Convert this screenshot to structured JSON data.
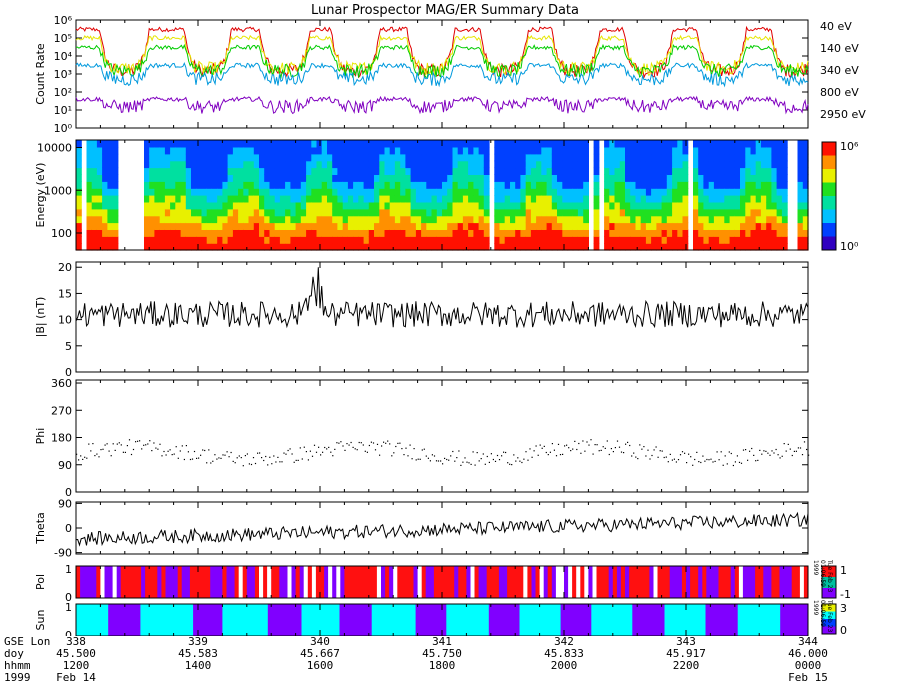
{
  "chart_data": {
    "title": "Lunar Prospector MAG/ER Summary Data",
    "xrange_doy": [
      45.5,
      46.0
    ],
    "panels": [
      {
        "id": "count_rate",
        "type": "line",
        "ylabel": "Count Rate",
        "yscale": "log",
        "ylim": [
          1,
          1000000
        ],
        "yticks": [
          "10⁰",
          "10¹",
          "10²",
          "10³",
          "10⁴",
          "10⁵",
          "10⁶"
        ],
        "series": [
          {
            "name": "40 eV",
            "color": "#e00000",
            "base": 300000,
            "wake_value": 1500
          },
          {
            "name": "140 eV",
            "color": "#e6e600",
            "base": 100000,
            "wake_value": 2000
          },
          {
            "name": "340 eV",
            "color": "#00cc00",
            "base": 30000,
            "wake_value": 1500
          },
          {
            "name": "800 eV",
            "color": "#0099dd",
            "base": 3000,
            "wake_value": 500
          },
          {
            "name": "2950 eV",
            "color": "#8000c0",
            "base": 40,
            "wake_value": 15
          }
        ]
      },
      {
        "id": "energy",
        "type": "heatmap",
        "ylabel": "Energy (eV)",
        "yscale": "log",
        "ylim": [
          40,
          15000
        ],
        "yticks": [
          "100",
          "1000",
          "10000"
        ],
        "colorbar": {
          "min_label": "10⁰",
          "max_label": "10⁶"
        }
      },
      {
        "id": "bmag",
        "type": "line",
        "ylabel": "|B| (nT)",
        "ylim": [
          0,
          21
        ],
        "yticks": [
          "0",
          "5",
          "10",
          "15",
          "20"
        ],
        "mean": 11
      },
      {
        "id": "phi",
        "type": "scatter",
        "ylabel": "Phi",
        "ylim": [
          0,
          370
        ],
        "yticks": [
          "0",
          "90",
          "180",
          "270",
          "360"
        ],
        "mean": 130
      },
      {
        "id": "theta",
        "type": "line",
        "ylabel": "Theta",
        "ylim": [
          -95,
          95
        ],
        "yticks": [
          "-90",
          "0",
          "90"
        ],
        "mean": 10
      },
      {
        "id": "pol",
        "type": "heatmap",
        "ylabel": "Pol",
        "yticks": [
          "0",
          "1"
        ],
        "colorbar": {
          "min_label": "-1",
          "max_label": "1"
        },
        "colors": {
          "positive": "#ff1010",
          "negative": "#8000ff"
        }
      },
      {
        "id": "sun",
        "type": "heatmap",
        "ylabel": "Sun",
        "yticks": [
          "0",
          "1"
        ],
        "colorbar": {
          "min_label": "0",
          "max_label": "3"
        },
        "colors": {
          "sunlit": "#00ffff",
          "shadow": "#8000ff"
        },
        "shadow_intervals_doy": [
          [
            45.522,
            45.544
          ],
          [
            45.58,
            45.6
          ],
          [
            45.631,
            45.654
          ],
          [
            45.68,
            45.702
          ],
          [
            45.732,
            45.753
          ],
          [
            45.782,
            45.803
          ],
          [
            45.831,
            45.852
          ],
          [
            45.88,
            45.902
          ],
          [
            45.93,
            45.952
          ],
          [
            45.981,
            46.0
          ]
        ]
      }
    ]
  },
  "legend": [
    {
      "label": "40 eV",
      "color": "#e00000"
    },
    {
      "label": "140 eV",
      "color": "#e6e600"
    },
    {
      "label": "340 eV",
      "color": "#00cc00"
    },
    {
      "label": "800 eV",
      "color": "#0099dd"
    },
    {
      "label": "2950 eV",
      "color": "#8000c0"
    }
  ],
  "footer": {
    "row_labels": [
      "GSE Lon",
      "doy",
      "hhmm",
      "1999"
    ],
    "columns": [
      {
        "lon": "338",
        "doy": "45.500",
        "hhmm": "1200",
        "date": "Feb 14"
      },
      {
        "lon": "339",
        "doy": "45.583",
        "hhmm": "1400",
        "date": ""
      },
      {
        "lon": "340",
        "doy": "45.667",
        "hhmm": "1600",
        "date": ""
      },
      {
        "lon": "341",
        "doy": "45.750",
        "hhmm": "1800",
        "date": ""
      },
      {
        "lon": "342",
        "doy": "45.833",
        "hhmm": "2000",
        "date": ""
      },
      {
        "lon": "343",
        "doy": "45.917",
        "hhmm": "2200",
        "date": ""
      },
      {
        "lon": "344",
        "doy": "46.000",
        "hhmm": "0000",
        "date": "Feb 15"
      }
    ]
  },
  "side_tags": [
    "Tue Feb 23 01:06:59 1999",
    "Tue Feb 23 01:06:59 1999"
  ]
}
